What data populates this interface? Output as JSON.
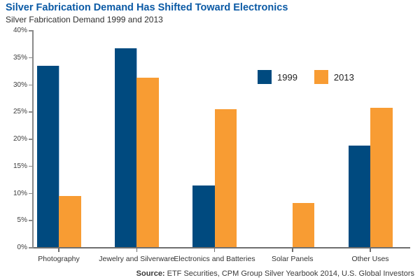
{
  "header": {
    "title": "Silver Fabrication Demand Has Shifted Toward Electronics",
    "subtitle": "Silver Fabrication Demand 1999 and 2013"
  },
  "chart_data": {
    "type": "bar",
    "title": "Silver Fabrication Demand Has Shifted Toward Electronics",
    "subtitle": "Silver Fabrication Demand 1999 and 2013",
    "categories": [
      "Photography",
      "Jewelry and Silverware",
      "Electronics and Batteries",
      "Solar Panels",
      "Other Uses"
    ],
    "series": [
      {
        "name": "1999",
        "color": "#004A7F",
        "values": [
          33.4,
          36.7,
          11.3,
          0,
          18.7
        ]
      },
      {
        "name": "2013",
        "color": "#F89C33",
        "values": [
          9.4,
          31.2,
          25.4,
          8.1,
          25.7
        ]
      }
    ],
    "xlabel": "",
    "ylabel": "",
    "ylim": [
      0,
      40
    ],
    "ytick_step": 5,
    "ytick_suffix": "%",
    "grid": false,
    "legend_position": "inside-top-right"
  },
  "footer": {
    "source_label": "Source:",
    "source_text": "ETF Securities, CPM Group Silver Yearbook 2014, U.S. Global Investors"
  },
  "colors": {
    "title": "#0B5AA5",
    "axis_line": "#6E6E6E",
    "axis_minor": "#8A8A8A",
    "tick_text": "#3D3D3D",
    "series_1999": "#004A7F",
    "series_2013": "#F89C33",
    "bar_highlight_edge": "#A9C7E2"
  }
}
